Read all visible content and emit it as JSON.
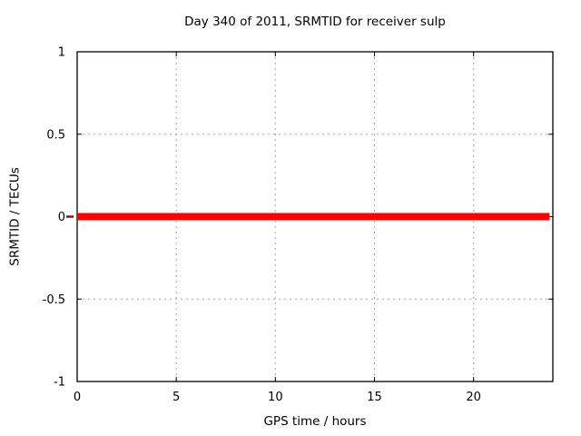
{
  "page": {
    "background": "#ffffff"
  },
  "chart_data": {
    "type": "line",
    "title": "Day 340 of 2011, SRMTID for receiver sulp",
    "xlabel": "GPS time / hours",
    "ylabel": "SRMTID / TECUs",
    "xlim": [
      0,
      24
    ],
    "ylim": [
      -1,
      1
    ],
    "xtick_values": [
      0,
      5,
      10,
      15,
      20
    ],
    "xtick_labels": [
      "0",
      "5",
      "10",
      "15",
      "20"
    ],
    "ytick_values": [
      -1,
      -0.5,
      0,
      0.5,
      1
    ],
    "ytick_labels": [
      "-1",
      "-0.5",
      "0",
      "0.5",
      "1"
    ],
    "grid": {
      "visible": true,
      "line_style": "dotted",
      "color": "#a6a6a6"
    },
    "axis_color": "#000000",
    "text_color": "#000000",
    "legend": {
      "visible": false
    },
    "series": [
      {
        "name": "SRMTID",
        "color": "#ff0000",
        "x": [
          0,
          23.83
        ],
        "y": [
          0,
          0
        ]
      }
    ],
    "annotations": [
      {
        "name": "outer-dash",
        "side": "left-of-y-axis",
        "y": 0,
        "color": "#a40000"
      }
    ]
  }
}
